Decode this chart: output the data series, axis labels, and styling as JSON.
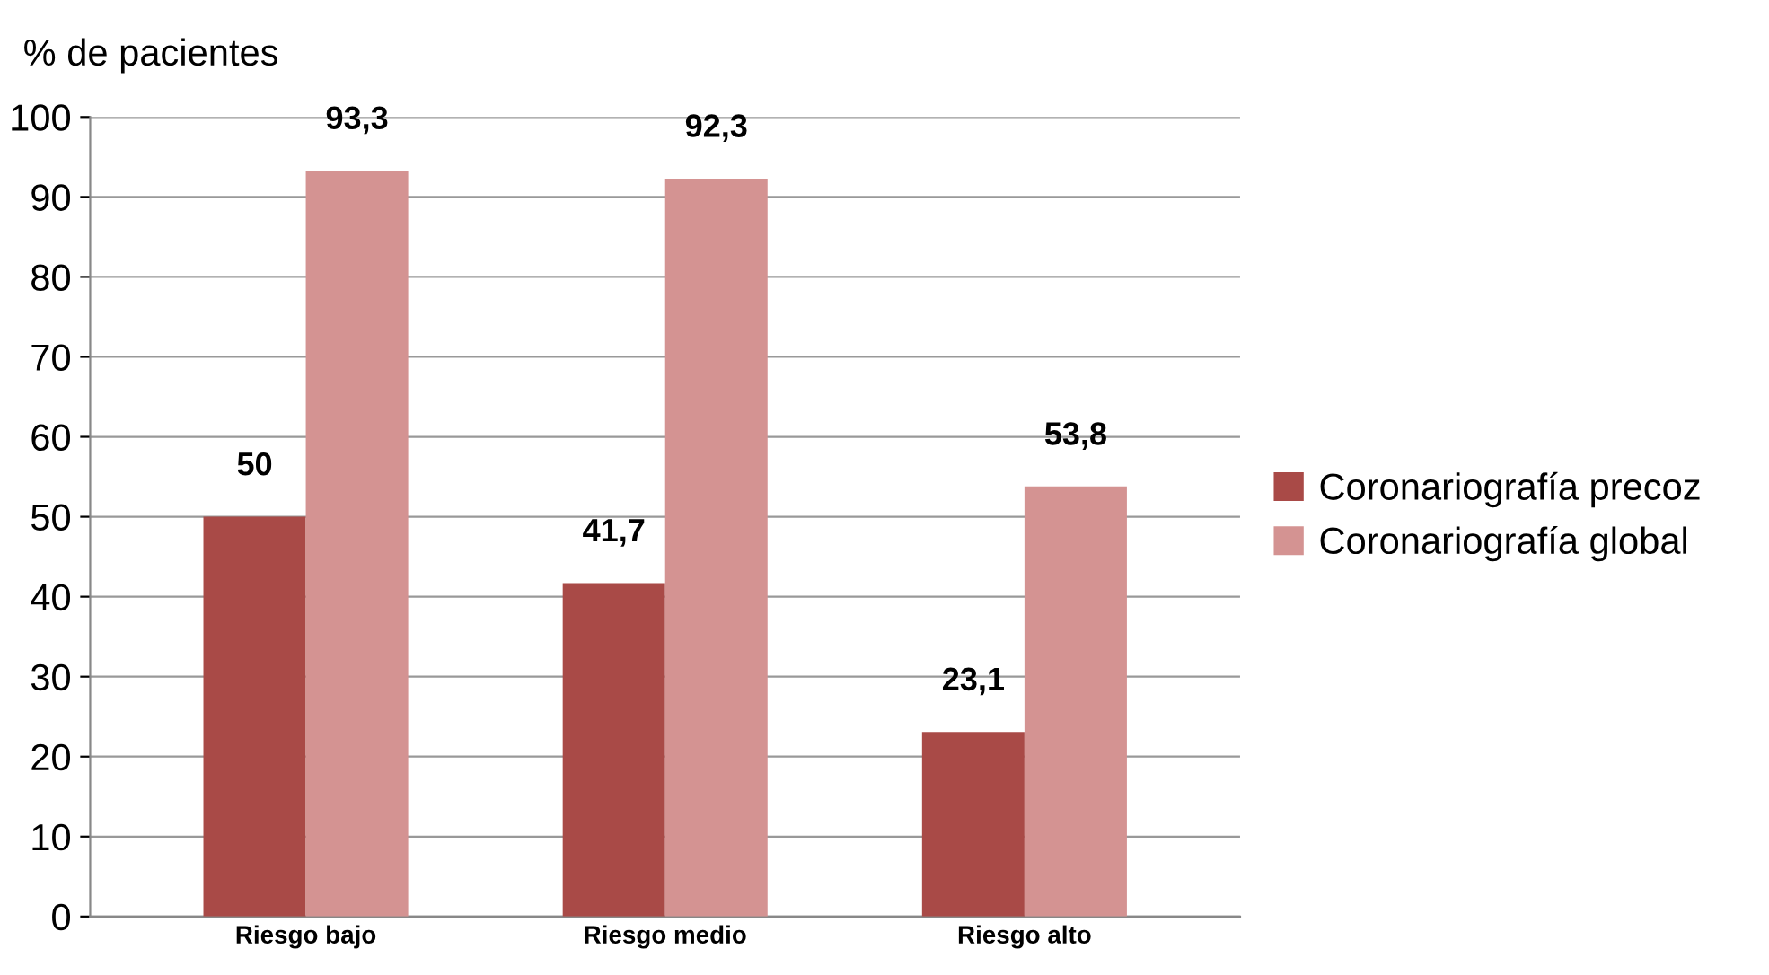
{
  "chart_data": {
    "type": "bar",
    "ylabel": "% de pacientes",
    "categories": [
      "Riesgo bajo",
      "Riesgo medio",
      "Riesgo alto"
    ],
    "series": [
      {
        "name": "Coronariografía precoz",
        "color": "#a94a47",
        "values": [
          50,
          41.7,
          23.1
        ],
        "value_labels": [
          "50",
          "41,7",
          "23,1"
        ]
      },
      {
        "name": "Coronariografía global",
        "color": "#d49392",
        "values": [
          93.3,
          92.3,
          53.8
        ],
        "value_labels": [
          "93,3",
          "92,3",
          "53,8"
        ]
      }
    ],
    "ylim": [
      0,
      100
    ],
    "yticks": [
      0,
      10,
      20,
      30,
      40,
      50,
      60,
      70,
      80,
      90,
      100
    ],
    "grid": "y",
    "legend": "right"
  }
}
